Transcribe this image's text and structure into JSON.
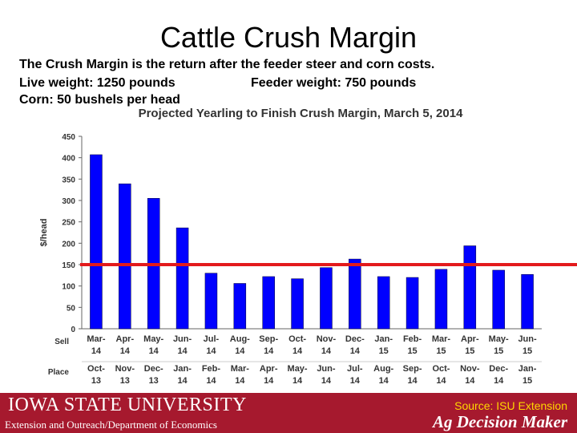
{
  "slide": {
    "title": "Cattle Crush Margin",
    "desc_line1": "The Crush Margin is the return after the feeder steer and corn costs.",
    "desc_line2a": "Live weight:  1250 pounds",
    "desc_line2b": "Feeder weight:  750 pounds",
    "desc_line3": "Corn:  50 bushels per head"
  },
  "chart_data": {
    "type": "bar",
    "title": "Projected Yearling to Finish Crush Margin, March 5, 2014",
    "ylabel": "$/head",
    "ylim": [
      0,
      450
    ],
    "yticks": [
      0,
      50,
      100,
      150,
      200,
      250,
      300,
      350,
      400,
      450
    ],
    "row_labels": [
      "Sell",
      "Place"
    ],
    "sell": [
      [
        "Mar-",
        "14"
      ],
      [
        "Apr-",
        "14"
      ],
      [
        "May-",
        "14"
      ],
      [
        "Jun-",
        "14"
      ],
      [
        "Jul-",
        "14"
      ],
      [
        "Aug-",
        "14"
      ],
      [
        "Sep-",
        "14"
      ],
      [
        "Oct-",
        "14"
      ],
      [
        "Nov-",
        "14"
      ],
      [
        "Dec-",
        "14"
      ],
      [
        "Jan-",
        "15"
      ],
      [
        "Feb-",
        "15"
      ],
      [
        "Mar-",
        "15"
      ],
      [
        "Apr-",
        "15"
      ],
      [
        "May-",
        "15"
      ],
      [
        "Jun-",
        "15"
      ]
    ],
    "place": [
      [
        "Oct-",
        "13"
      ],
      [
        "Nov-",
        "13"
      ],
      [
        "Dec-",
        "13"
      ],
      [
        "Jan-",
        "14"
      ],
      [
        "Feb-",
        "14"
      ],
      [
        "Mar-",
        "14"
      ],
      [
        "Apr-",
        "14"
      ],
      [
        "May-",
        "14"
      ],
      [
        "Jun-",
        "14"
      ],
      [
        "Jul-",
        "14"
      ],
      [
        "Aug-",
        "14"
      ],
      [
        "Sep-",
        "14"
      ],
      [
        "Oct-",
        "14"
      ],
      [
        "Nov-",
        "14"
      ],
      [
        "Dec-",
        "14"
      ],
      [
        "Jan-",
        "15"
      ]
    ],
    "values": [
      407,
      339,
      305,
      236,
      130,
      106,
      122,
      117,
      143,
      163,
      122,
      120,
      139,
      194,
      137,
      127
    ],
    "reference_line": 150,
    "bar_color": "#0000ff",
    "reference_color": "#e31a1c"
  },
  "footer": {
    "university": "IOWA STATE UNIVERSITY",
    "department": "Extension and Outreach/Department of Economics",
    "source": "Source: ISU Extension",
    "brand": "Ag Decision Maker",
    "bg_color": "#a6192e"
  }
}
